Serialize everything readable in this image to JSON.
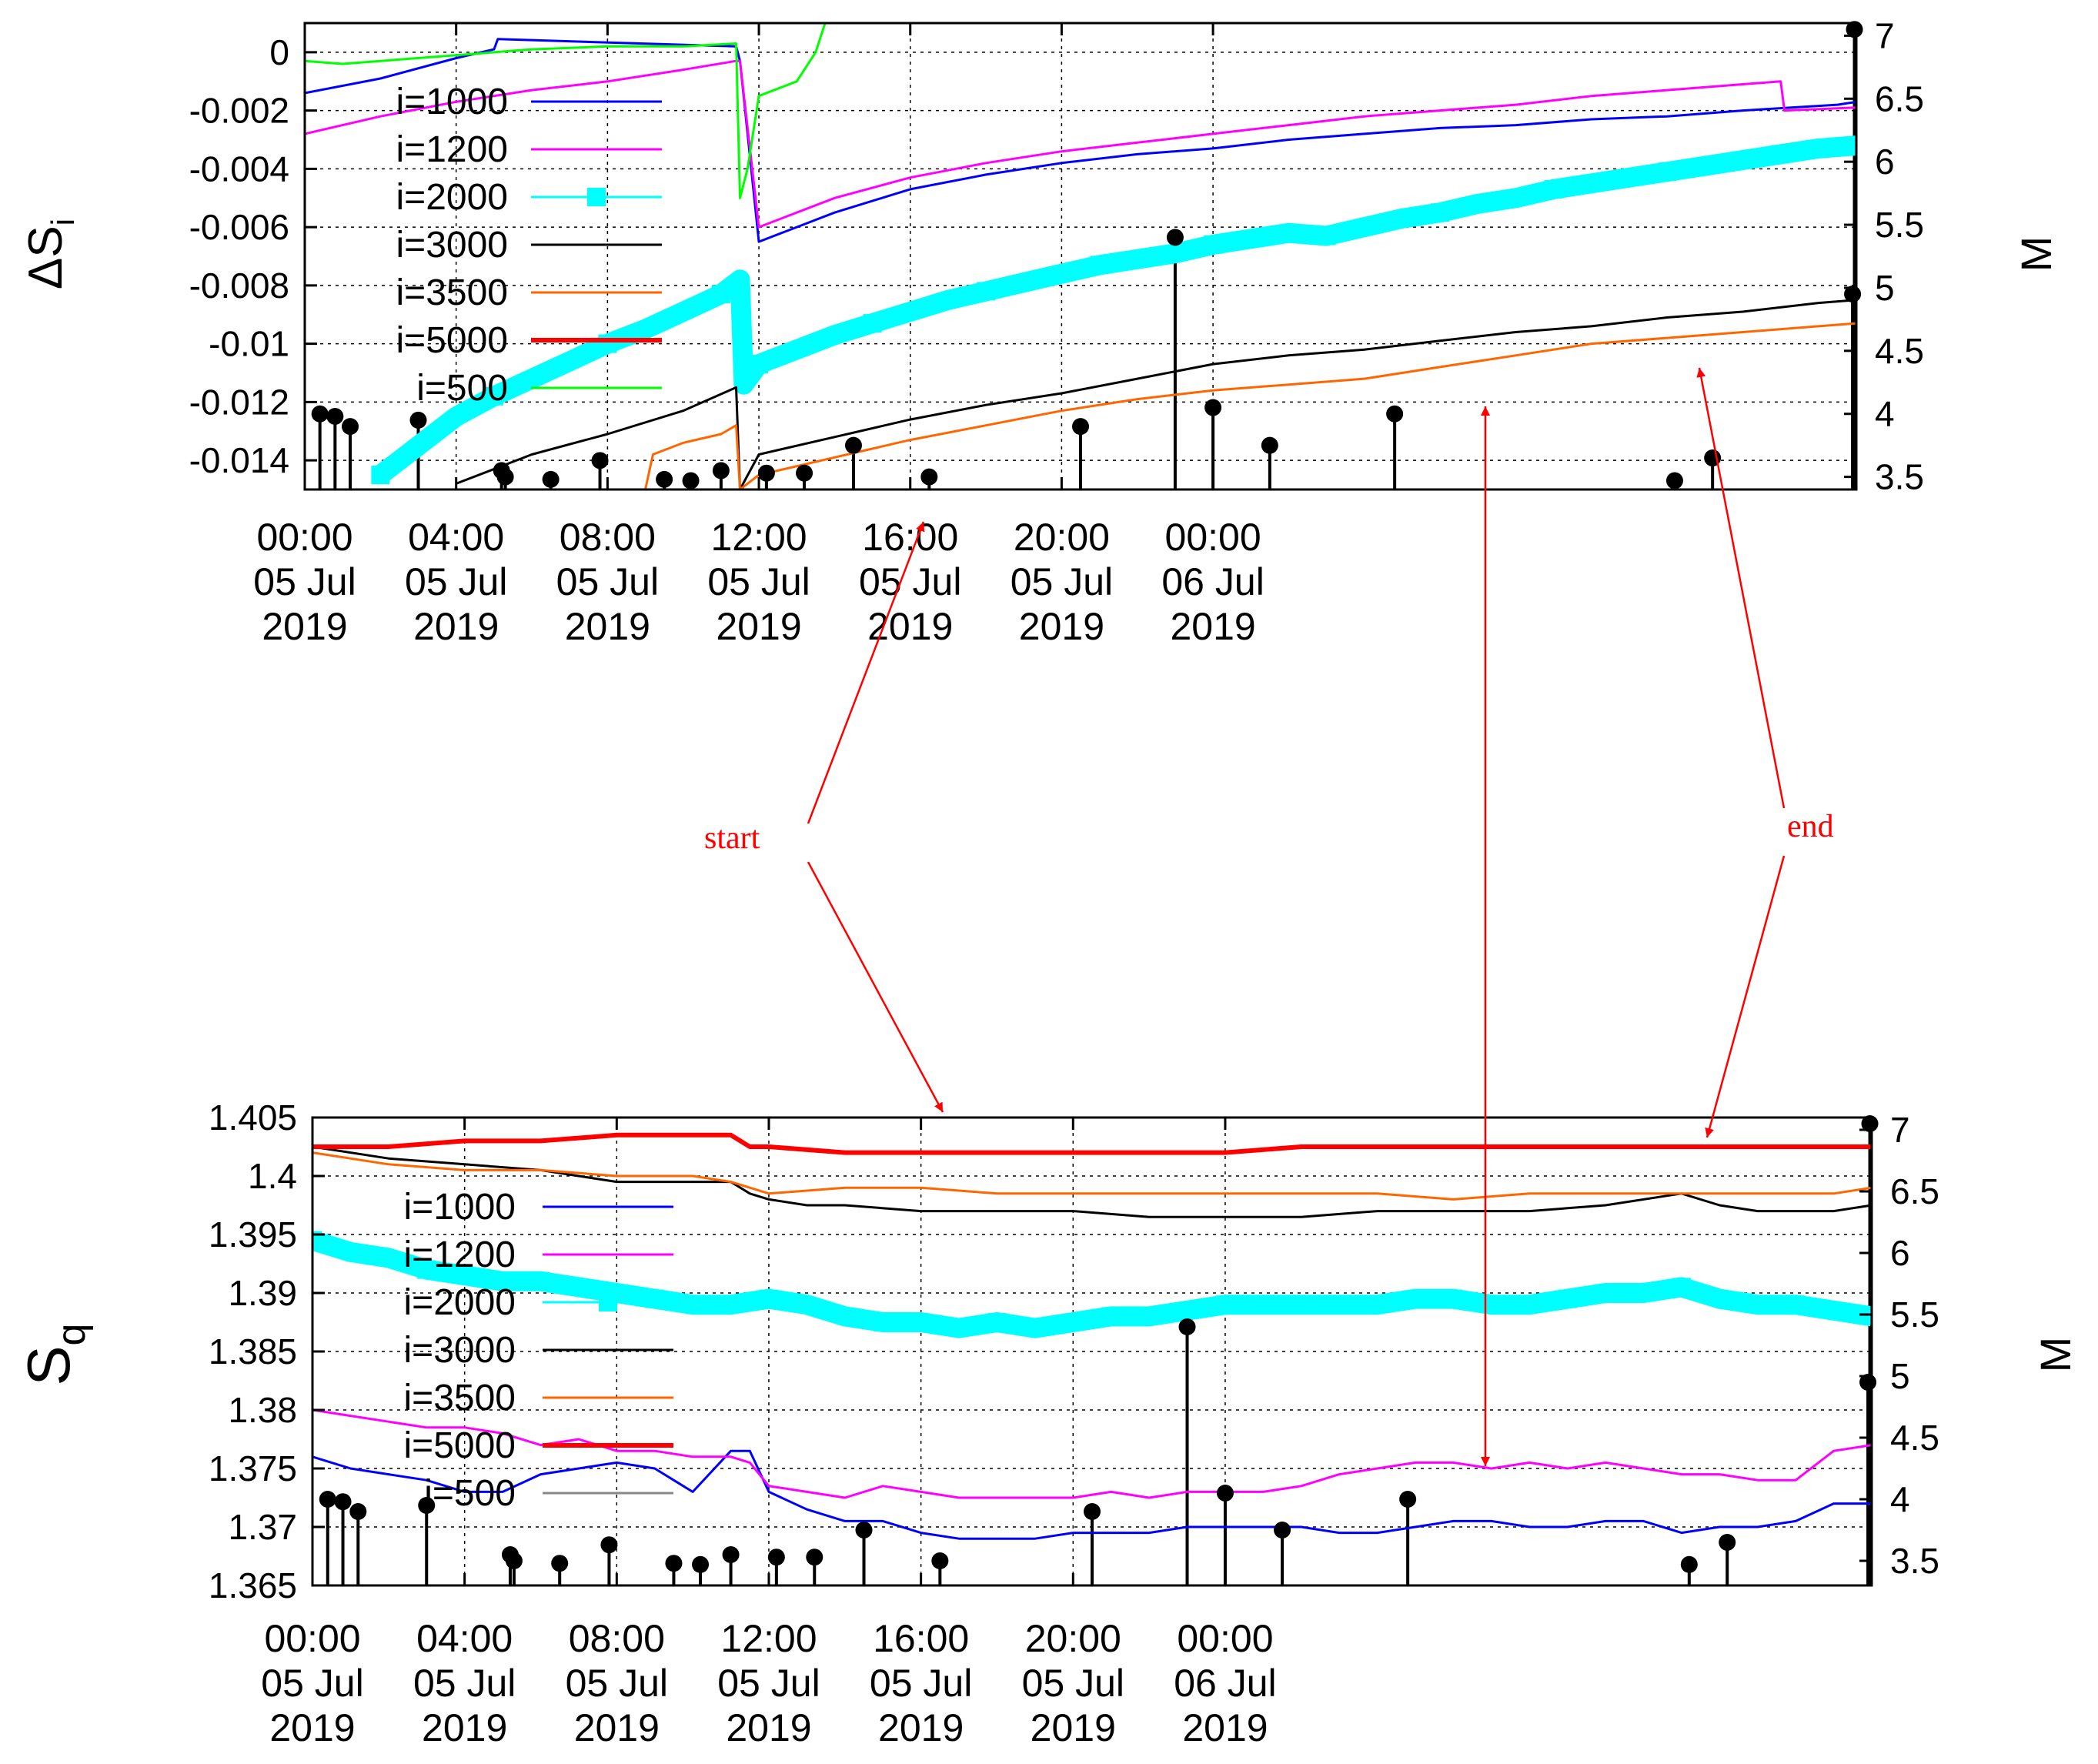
{
  "chart_data": [
    {
      "type": "line",
      "ylabel": "ΔS",
      "ylabel_sub": "i",
      "y2label": "M",
      "x_unit": "hours since 00:00 05 Jul 2019",
      "xlim": [
        0,
        41
      ],
      "ylim": [
        -0.015,
        0.001
      ],
      "y2lim": [
        3.4,
        7.1
      ],
      "yticks": [
        0,
        -0.002,
        -0.004,
        -0.006,
        -0.008,
        -0.01,
        -0.012,
        -0.014
      ],
      "ytick_labels": [
        "0",
        "-0.002",
        "-0.004",
        "-0.006",
        "-0.008",
        "-0.01",
        "-0.012",
        "-0.014"
      ],
      "y2ticks": [
        7,
        6.5,
        6,
        5.5,
        5,
        4.5,
        4,
        3.5
      ],
      "y2tick_labels": [
        "7",
        "6.5",
        "6",
        "5.5",
        "5",
        "4.5",
        "4",
        "3.5"
      ],
      "grid": true,
      "legend_position": "top-left",
      "series": [
        {
          "name": "i=1000",
          "color": "#0000ff",
          "x": [
            0,
            2,
            4,
            5,
            5.1,
            11.4,
            11.5,
            12,
            14,
            16,
            18,
            20,
            22,
            24,
            26,
            28,
            30,
            32,
            34,
            36,
            38,
            40.5,
            41
          ],
          "y": [
            -0.0014,
            -0.0009,
            -0.0002,
            0.0001,
            0.00045,
            0.0002,
            -0.0003,
            -0.0065,
            -0.0055,
            -0.0047,
            -0.0042,
            -0.0038,
            -0.0035,
            -0.0033,
            -0.003,
            -0.0028,
            -0.0026,
            -0.0025,
            -0.0023,
            -0.0022,
            -0.002,
            -0.0018,
            -0.0017
          ]
        },
        {
          "name": "i=1200",
          "color": "#ff00ff",
          "x": [
            0,
            2,
            4,
            6,
            8,
            10,
            11.4,
            11.5,
            12,
            14,
            16,
            18,
            20,
            22,
            24,
            26,
            28,
            30,
            32,
            34,
            36,
            38,
            39,
            39.1,
            41
          ],
          "y": [
            -0.0028,
            -0.0022,
            -0.0017,
            -0.0013,
            -0.001,
            -0.0006,
            -0.0003,
            -0.0003,
            -0.006,
            -0.005,
            -0.0043,
            -0.0038,
            -0.0034,
            -0.0031,
            -0.0028,
            -0.0025,
            -0.0022,
            -0.002,
            -0.0018,
            -0.0015,
            -0.0013,
            -0.0011,
            -0.001,
            -0.002,
            -0.0019
          ]
        },
        {
          "name": "i=2000",
          "color": "#00ffff",
          "marker": "square",
          "x": [
            2,
            3,
            4,
            5,
            6,
            7,
            8,
            9,
            10,
            11,
            11.5,
            11.6,
            12,
            13,
            14,
            15,
            16,
            17,
            18,
            19,
            20,
            21,
            22,
            23,
            24,
            25,
            26,
            27,
            28,
            29,
            30,
            31,
            32,
            33,
            34,
            35,
            36,
            37,
            38,
            39,
            40,
            41
          ],
          "y": [
            -0.0145,
            -0.0135,
            -0.0125,
            -0.0118,
            -0.0112,
            -0.0106,
            -0.01,
            -0.0095,
            -0.0089,
            -0.0083,
            -0.0078,
            -0.0114,
            -0.0107,
            -0.0102,
            -0.0097,
            -0.0093,
            -0.0089,
            -0.0085,
            -0.0082,
            -0.0079,
            -0.0076,
            -0.0073,
            -0.0071,
            -0.0069,
            -0.0066,
            -0.0064,
            -0.0062,
            -0.0063,
            -0.006,
            -0.0057,
            -0.0055,
            -0.0052,
            -0.005,
            -0.0047,
            -0.0045,
            -0.0043,
            -0.0041,
            -0.0039,
            -0.0037,
            -0.0035,
            -0.0033,
            -0.0032
          ]
        },
        {
          "name": "i=3000",
          "color": "#000000",
          "x": [
            4,
            6,
            8,
            10,
            11.4,
            11.5,
            12,
            14,
            16,
            18,
            20,
            22,
            24,
            26,
            28,
            30,
            32,
            34,
            36,
            38,
            40,
            41
          ],
          "y": [
            -0.0148,
            -0.0138,
            -0.0131,
            -0.0123,
            -0.0115,
            -0.015,
            -0.0138,
            -0.0132,
            -0.0126,
            -0.0121,
            -0.0117,
            -0.0112,
            -0.0107,
            -0.0104,
            -0.0102,
            -0.0099,
            -0.0096,
            -0.0094,
            -0.0091,
            -0.0089,
            -0.0086,
            -0.0085
          ]
        },
        {
          "name": "i=3500",
          "color": "#ff6600",
          "x": [
            9,
            9.2,
            10,
            11,
            11.4,
            11.5,
            12,
            14,
            16,
            18,
            20,
            22,
            24,
            26,
            28,
            30,
            32,
            34,
            36,
            38,
            40,
            41
          ],
          "y": [
            -0.015,
            -0.0138,
            -0.0134,
            -0.0131,
            -0.0128,
            -0.015,
            -0.0145,
            -0.0139,
            -0.0133,
            -0.0128,
            -0.0123,
            -0.0119,
            -0.0116,
            -0.0114,
            -0.0112,
            -0.0108,
            -0.0104,
            -0.01,
            -0.0098,
            -0.0096,
            -0.0094,
            -0.0093
          ]
        },
        {
          "name": "i=5000",
          "color": "#ff0000",
          "x": [],
          "y": []
        },
        {
          "name": "i=500",
          "color": "#00ff00",
          "x": [
            0,
            1,
            2,
            4,
            6,
            8,
            10,
            11.4,
            11.5,
            11.7,
            12,
            13,
            13.5,
            14
          ],
          "y": [
            -0.0003,
            -0.0004,
            -0.0003,
            -0.0001,
            0.0001,
            0.0002,
            0.0002,
            0.0003,
            -0.005,
            -0.004,
            -0.0015,
            -0.001,
            0,
            0.002
          ]
        }
      ],
      "earthquakes": {
        "x": [
          0.4,
          0.8,
          1.2,
          3.0,
          5.2,
          5.3,
          6.5,
          7.8,
          9.5,
          10.2,
          11.0,
          12.2,
          13.2,
          14.5,
          16.5,
          20.5,
          23.0,
          24.0,
          25.5,
          28.8,
          36.2,
          37.2,
          40.9,
          40.95
        ],
        "y": [
          4.0,
          3.98,
          3.9,
          3.95,
          3.55,
          3.5,
          3.48,
          3.63,
          3.48,
          3.47,
          3.55,
          3.53,
          3.53,
          3.75,
          3.5,
          3.9,
          5.4,
          4.05,
          3.75,
          4.0,
          3.47,
          3.65,
          4.95,
          7.05
        ]
      }
    },
    {
      "type": "line",
      "ylabel": "S",
      "ylabel_sub": "q",
      "y2label": "M",
      "x_unit": "hours since 00:00 05 Jul 2019",
      "xlim": [
        0,
        41
      ],
      "ylim": [
        1.365,
        1.405
      ],
      "y2lim": [
        3.3,
        7.1
      ],
      "yticks": [
        1.405,
        1.4,
        1.395,
        1.39,
        1.385,
        1.38,
        1.375,
        1.37,
        1.365
      ],
      "ytick_labels": [
        "1.405",
        "1.4",
        "1.395",
        "1.39",
        "1.385",
        "1.38",
        "1.375",
        "1.37",
        "1.365"
      ],
      "y2ticks": [
        7,
        6.5,
        6,
        5.5,
        5,
        4.5,
        4,
        3.5
      ],
      "y2tick_labels": [
        "7",
        "6.5",
        "6",
        "5.5",
        "5",
        "4.5",
        "4",
        "3.5"
      ],
      "grid": true,
      "legend_position": "top-left",
      "series": [
        {
          "name": "i=1000",
          "color": "#0000ff",
          "x": [
            0,
            1,
            2,
            3,
            4,
            5,
            6,
            7,
            8,
            9,
            10,
            11,
            11.5,
            12,
            13,
            14,
            15,
            16,
            17,
            18,
            19,
            20,
            21,
            22,
            23,
            24,
            25,
            26,
            27,
            28,
            29,
            30,
            31,
            32,
            33,
            34,
            35,
            36,
            37,
            38,
            39,
            40,
            41
          ],
          "y": [
            1.376,
            1.375,
            1.3745,
            1.374,
            1.373,
            1.373,
            1.3745,
            1.375,
            1.3755,
            1.375,
            1.373,
            1.3765,
            1.3765,
            1.373,
            1.3715,
            1.3705,
            1.3705,
            1.3695,
            1.369,
            1.369,
            1.369,
            1.3695,
            1.3695,
            1.3695,
            1.37,
            1.37,
            1.37,
            1.37,
            1.3695,
            1.3695,
            1.37,
            1.3705,
            1.3705,
            1.37,
            1.37,
            1.3705,
            1.3705,
            1.3695,
            1.37,
            1.37,
            1.3705,
            1.372,
            1.372
          ]
        },
        {
          "name": "i=1200",
          "color": "#ff00ff",
          "x": [
            0,
            1,
            2,
            3,
            4,
            5,
            6,
            7,
            8,
            9,
            10,
            11,
            11.5,
            12,
            13,
            14,
            15,
            16,
            17,
            18,
            19,
            20,
            21,
            22,
            23,
            24,
            25,
            26,
            27,
            28,
            29,
            30,
            31,
            32,
            33,
            34,
            35,
            36,
            37,
            38,
            39,
            40,
            41
          ],
          "y": [
            1.38,
            1.3795,
            1.379,
            1.3785,
            1.3785,
            1.378,
            1.377,
            1.3775,
            1.3765,
            1.3765,
            1.376,
            1.376,
            1.3755,
            1.3735,
            1.373,
            1.3725,
            1.3735,
            1.373,
            1.3725,
            1.3725,
            1.3725,
            1.3725,
            1.373,
            1.3725,
            1.373,
            1.373,
            1.373,
            1.3735,
            1.3745,
            1.375,
            1.3755,
            1.3755,
            1.375,
            1.3755,
            1.375,
            1.3755,
            1.375,
            1.3745,
            1.3745,
            1.374,
            1.374,
            1.3765,
            1.377
          ]
        },
        {
          "name": "i=2000",
          "color": "#00ffff",
          "marker": "square",
          "x": [
            0,
            1,
            2,
            3,
            4,
            5,
            6,
            7,
            8,
            9,
            10,
            11,
            12,
            13,
            14,
            15,
            16,
            17,
            18,
            19,
            20,
            21,
            22,
            23,
            24,
            25,
            26,
            27,
            28,
            29,
            30,
            31,
            32,
            33,
            34,
            35,
            36,
            37,
            38,
            39,
            40,
            41
          ],
          "y": [
            1.3945,
            1.3935,
            1.393,
            1.392,
            1.3915,
            1.391,
            1.391,
            1.3905,
            1.39,
            1.3895,
            1.389,
            1.389,
            1.3895,
            1.389,
            1.388,
            1.3875,
            1.3875,
            1.387,
            1.3875,
            1.387,
            1.3875,
            1.388,
            1.388,
            1.3885,
            1.389,
            1.389,
            1.389,
            1.389,
            1.389,
            1.3895,
            1.3895,
            1.389,
            1.389,
            1.3895,
            1.39,
            1.39,
            1.3905,
            1.3895,
            1.389,
            1.389,
            1.3885,
            1.388
          ]
        },
        {
          "name": "i=3000",
          "color": "#000000",
          "x": [
            0,
            2,
            4,
            6,
            8,
            10,
            11,
            11.5,
            12,
            13,
            14,
            16,
            18,
            20,
            22,
            24,
            26,
            28,
            30,
            32,
            34,
            36,
            37,
            38,
            40,
            41
          ],
          "y": [
            1.4025,
            1.4015,
            1.401,
            1.4005,
            1.3995,
            1.3995,
            1.3995,
            1.3985,
            1.398,
            1.3975,
            1.3975,
            1.397,
            1.397,
            1.397,
            1.3965,
            1.3965,
            1.3965,
            1.397,
            1.397,
            1.397,
            1.3975,
            1.3985,
            1.3975,
            1.397,
            1.397,
            1.3975
          ]
        },
        {
          "name": "i=3500",
          "color": "#ff6600",
          "x": [
            0,
            2,
            4,
            6,
            8,
            10,
            11,
            11.5,
            12,
            14,
            16,
            18,
            20,
            22,
            24,
            26,
            28,
            30,
            32,
            34,
            36,
            38,
            40,
            41
          ],
          "y": [
            1.402,
            1.401,
            1.4005,
            1.4005,
            1.4,
            1.4,
            1.3995,
            1.399,
            1.3985,
            1.399,
            1.399,
            1.3985,
            1.3985,
            1.3985,
            1.3985,
            1.3985,
            1.3985,
            1.398,
            1.3985,
            1.3985,
            1.3985,
            1.3985,
            1.3985,
            1.399
          ]
        },
        {
          "name": "i=5000",
          "color": "#ff0000",
          "x": [
            0,
            2,
            4,
            6,
            8,
            10,
            11,
            11.5,
            12,
            14,
            16,
            18,
            20,
            22,
            24,
            26,
            28,
            30,
            32,
            34,
            36,
            38,
            40,
            41
          ],
          "y": [
            1.4025,
            1.4025,
            1.403,
            1.403,
            1.4035,
            1.4035,
            1.4035,
            1.4025,
            1.4025,
            1.402,
            1.402,
            1.402,
            1.402,
            1.402,
            1.402,
            1.4025,
            1.4025,
            1.4025,
            1.4025,
            1.4025,
            1.4025,
            1.4025,
            1.4025,
            1.4025
          ]
        },
        {
          "name": "i=500",
          "color": "#888888",
          "x": [],
          "y": []
        }
      ],
      "earthquakes": {
        "x": [
          0.4,
          0.8,
          1.2,
          3.0,
          5.2,
          5.3,
          6.5,
          7.8,
          9.5,
          10.2,
          11.0,
          12.2,
          13.2,
          14.5,
          16.5,
          20.5,
          23.0,
          24.0,
          25.5,
          28.8,
          36.2,
          37.2,
          40.9,
          40.95
        ],
        "y": [
          4.0,
          3.98,
          3.9,
          3.95,
          3.55,
          3.5,
          3.48,
          3.63,
          3.48,
          3.47,
          3.55,
          3.53,
          3.53,
          3.75,
          3.5,
          3.9,
          5.4,
          4.05,
          3.75,
          4.0,
          3.47,
          3.65,
          4.95,
          7.05
        ]
      }
    }
  ],
  "xticks": {
    "hours": [
      0,
      4,
      8,
      12,
      16,
      20,
      24
    ],
    "line1": [
      "00:00",
      "04:00",
      "08:00",
      "12:00",
      "16:00",
      "20:00",
      "00:00"
    ],
    "line2": [
      "05 Jul",
      "05 Jul",
      "05 Jul",
      "05 Jul",
      "05 Jul",
      "05 Jul",
      "06 Jul"
    ],
    "line3": [
      "2019",
      "2019",
      "2019",
      "2019",
      "2019",
      "2019",
      "2019"
    ]
  },
  "annotations": {
    "start_label": "start",
    "end_label": "end",
    "color": "#ff0000"
  }
}
